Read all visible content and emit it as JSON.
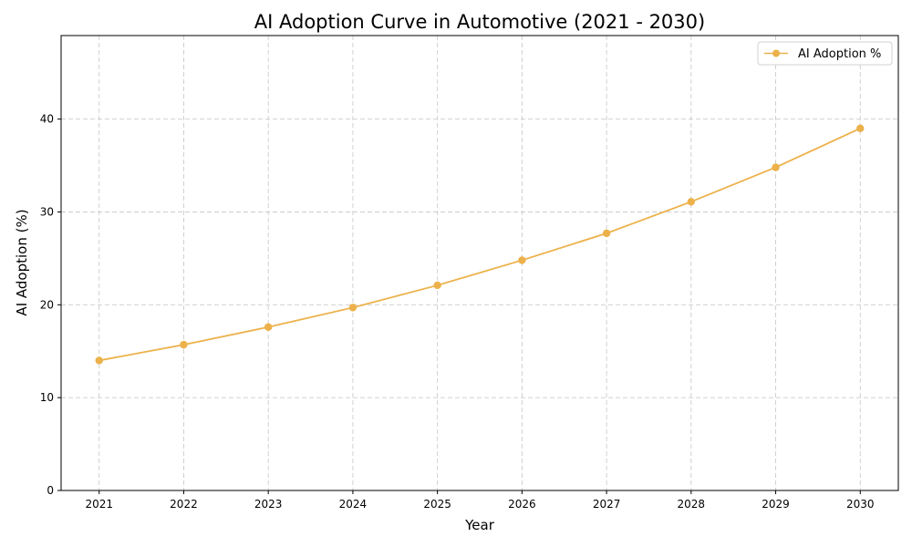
{
  "chart_data": {
    "type": "line",
    "title": "AI Adoption Curve in Automotive (2021 - 2030)",
    "xlabel": "Year",
    "ylabel": "AI Adoption (%)",
    "x": [
      2021,
      2022,
      2023,
      2024,
      2025,
      2026,
      2027,
      2028,
      2029,
      2030
    ],
    "series": [
      {
        "name": "AI Adoption %",
        "values": [
          14.0,
          15.7,
          17.6,
          19.7,
          22.1,
          24.8,
          27.7,
          31.1,
          34.8,
          39.0
        ],
        "color": "#ecb14a",
        "marker": "circle"
      }
    ],
    "xlim": [
      2020.55,
      2030.45
    ],
    "ylim": [
      0,
      49
    ],
    "yticks": [
      0,
      10,
      20,
      30,
      40
    ],
    "xticks": [
      "2021",
      "2022",
      "2023",
      "2024",
      "2025",
      "2026",
      "2027",
      "2028",
      "2029",
      "2030"
    ],
    "grid": true,
    "legend_position": "top-right"
  }
}
